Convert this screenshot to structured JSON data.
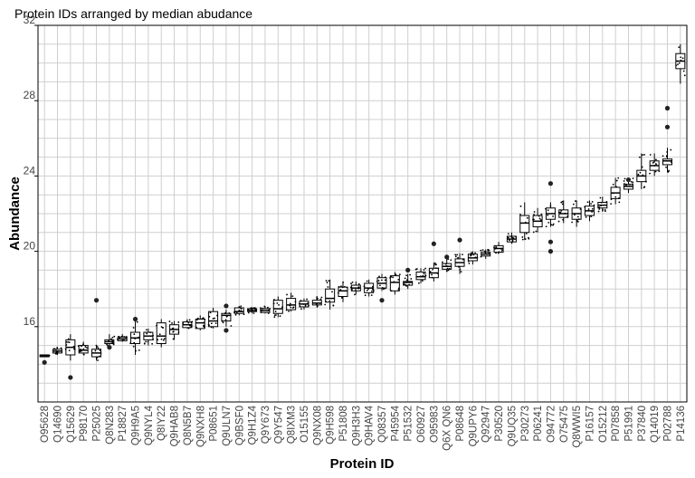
{
  "chart_data": {
    "type": "box",
    "title": "Protein IDs arranged by median abudance",
    "xlabel": "Protein ID",
    "ylabel": "Abundance",
    "ylim": [
      12.0,
      32.0
    ],
    "yticks": [
      16,
      20,
      24,
      28,
      32
    ],
    "grid": true,
    "legend": "none",
    "categories": [
      "O95628",
      "Q14690",
      "Q15629",
      "P98170",
      "P25025",
      "Q8N283",
      "P18827",
      "Q9H9A5",
      "Q9NYL4",
      "Q8IY22",
      "Q9HAB8",
      "Q8N5B7",
      "Q9NXH8",
      "P08651",
      "Q9ULN7",
      "Q9BSF0",
      "Q9H1Z4",
      "Q9Y673",
      "Q9Y547",
      "Q8IXM3",
      "O15155",
      "Q9NX08",
      "Q9H598",
      "P51808",
      "Q9H3H3",
      "Q9HAV4",
      "Q08357",
      "P45954",
      "P51532",
      "O60927",
      "O95983",
      "Q6X QN6",
      "P08648",
      "Q9UPY6",
      "Q92947",
      "P30520",
      "Q9UQ35",
      "P30273",
      "P06241",
      "O94772",
      "O75475",
      "Q8WWI5",
      "P16157",
      "O15212",
      "P07858",
      "P51991",
      "P37840",
      "Q14019",
      "P02788",
      "P14136"
    ],
    "labeled_categories": [
      "O95628",
      "Q14690",
      "Q15629",
      "P98170",
      "P25025",
      "Q8N283",
      "P18827",
      "Q9H9A5",
      "Q9NYL4",
      "Q8IY22",
      "Q9HAB8",
      "Q8N5B7",
      "Q9NXH8",
      "P08651",
      "Q9ULN7",
      "Q9BSF0",
      "Q9H1Z4",
      "Q9Y673",
      "Q9Y547",
      "Q8IXM3",
      "O15155",
      "Q9NX08",
      "Q9H598",
      "P51808",
      "Q9H3H3",
      "Q9HAV4",
      "Q08357",
      "P45954",
      "P51532",
      "O60927",
      "O95983",
      "Q6X QN6",
      "P08648",
      "Q9UPY6",
      "Q92947",
      "P30520",
      "Q9UQ35",
      "P30273",
      "P06241",
      "O94772",
      "O75475",
      "Q8WWI5",
      "P16157",
      "O15212",
      "P07858",
      "P51991",
      "P37840",
      "Q14019",
      "P02788",
      "P14136"
    ],
    "boxes": [
      {
        "q1": 14.4,
        "median": 14.45,
        "q3": 14.5,
        "whisker_low": 14.4,
        "whisker_high": 14.5,
        "outliers": [
          14.1
        ]
      },
      {
        "q1": 14.6,
        "median": 14.7,
        "q3": 14.8,
        "whisker_low": 14.5,
        "whisker_high": 14.9,
        "outliers": []
      },
      {
        "q1": 14.5,
        "median": 14.9,
        "q3": 15.3,
        "whisker_low": 14.2,
        "whisker_high": 15.6,
        "outliers": [
          13.3
        ]
      },
      {
        "q1": 14.6,
        "median": 14.75,
        "q3": 15.0,
        "whisker_low": 14.5,
        "whisker_high": 15.2,
        "outliers": []
      },
      {
        "q1": 14.4,
        "median": 14.6,
        "q3": 14.8,
        "whisker_low": 14.2,
        "whisker_high": 15.0,
        "outliers": [
          17.4
        ]
      },
      {
        "q1": 15.1,
        "median": 15.2,
        "q3": 15.3,
        "whisker_low": 15.0,
        "whisker_high": 15.6,
        "outliers": [
          14.9
        ]
      },
      {
        "q1": 15.25,
        "median": 15.35,
        "q3": 15.45,
        "whisker_low": 15.2,
        "whisker_high": 15.6,
        "outliers": []
      },
      {
        "q1": 15.1,
        "median": 15.4,
        "q3": 15.7,
        "whisker_low": 14.5,
        "whisker_high": 16.3,
        "outliers": [
          16.4
        ]
      },
      {
        "q1": 15.3,
        "median": 15.5,
        "q3": 15.7,
        "whisker_low": 15.0,
        "whisker_high": 15.9,
        "outliers": []
      },
      {
        "q1": 15.1,
        "median": 15.5,
        "q3": 16.2,
        "whisker_low": 14.9,
        "whisker_high": 16.4,
        "outliers": []
      },
      {
        "q1": 15.6,
        "median": 15.85,
        "q3": 16.1,
        "whisker_low": 15.3,
        "whisker_high": 16.3,
        "outliers": []
      },
      {
        "q1": 15.95,
        "median": 16.1,
        "q3": 16.25,
        "whisker_low": 15.9,
        "whisker_high": 16.4,
        "outliers": []
      },
      {
        "q1": 15.9,
        "median": 16.2,
        "q3": 16.4,
        "whisker_low": 15.8,
        "whisker_high": 16.6,
        "outliers": []
      },
      {
        "q1": 16.0,
        "median": 16.3,
        "q3": 16.8,
        "whisker_low": 15.9,
        "whisker_high": 17.0,
        "outliers": []
      },
      {
        "q1": 16.3,
        "median": 16.6,
        "q3": 16.7,
        "whisker_low": 16.0,
        "whisker_high": 16.9,
        "outliers": [
          15.8,
          17.1
        ]
      },
      {
        "q1": 16.7,
        "median": 16.8,
        "q3": 17.0,
        "whisker_low": 16.6,
        "whisker_high": 17.1,
        "outliers": []
      },
      {
        "q1": 16.8,
        "median": 16.85,
        "q3": 16.95,
        "whisker_low": 16.7,
        "whisker_high": 17.0,
        "outliers": []
      },
      {
        "q1": 16.75,
        "median": 16.85,
        "q3": 16.95,
        "whisker_low": 16.7,
        "whisker_high": 17.1,
        "outliers": []
      },
      {
        "q1": 16.7,
        "median": 16.95,
        "q3": 17.4,
        "whisker_low": 16.5,
        "whisker_high": 17.6,
        "outliers": []
      },
      {
        "q1": 16.9,
        "median": 17.15,
        "q3": 17.5,
        "whisker_low": 16.8,
        "whisker_high": 17.8,
        "outliers": []
      },
      {
        "q1": 17.05,
        "median": 17.2,
        "q3": 17.35,
        "whisker_low": 16.9,
        "whisker_high": 17.5,
        "outliers": []
      },
      {
        "q1": 17.15,
        "median": 17.25,
        "q3": 17.4,
        "whisker_low": 17.0,
        "whisker_high": 17.6,
        "outliers": []
      },
      {
        "q1": 17.3,
        "median": 17.5,
        "q3": 18.0,
        "whisker_low": 16.9,
        "whisker_high": 18.5,
        "outliers": []
      },
      {
        "q1": 17.6,
        "median": 17.9,
        "q3": 18.1,
        "whisker_low": 17.3,
        "whisker_high": 18.4,
        "outliers": []
      },
      {
        "q1": 17.9,
        "median": 18.05,
        "q3": 18.2,
        "whisker_low": 17.7,
        "whisker_high": 18.4,
        "outliers": []
      },
      {
        "q1": 17.8,
        "median": 18.05,
        "q3": 18.3,
        "whisker_low": 17.6,
        "whisker_high": 18.5,
        "outliers": []
      },
      {
        "q1": 18.05,
        "median": 18.3,
        "q3": 18.6,
        "whisker_low": 17.9,
        "whisker_high": 18.8,
        "outliers": [
          17.4
        ]
      },
      {
        "q1": 17.9,
        "median": 18.35,
        "q3": 18.7,
        "whisker_low": 17.7,
        "whisker_high": 18.9,
        "outliers": []
      },
      {
        "q1": 18.2,
        "median": 18.35,
        "q3": 18.4,
        "whisker_low": 18.0,
        "whisker_high": 18.8,
        "outliers": [
          19.0
        ]
      },
      {
        "q1": 18.5,
        "median": 18.65,
        "q3": 18.9,
        "whisker_low": 18.3,
        "whisker_high": 19.1,
        "outliers": []
      },
      {
        "q1": 18.6,
        "median": 18.85,
        "q3": 19.1,
        "whisker_low": 18.4,
        "whisker_high": 19.4,
        "outliers": [
          20.4
        ]
      },
      {
        "q1": 19.05,
        "median": 19.2,
        "q3": 19.35,
        "whisker_low": 18.9,
        "whisker_high": 19.6,
        "outliers": [
          19.7
        ]
      },
      {
        "q1": 19.2,
        "median": 19.4,
        "q3": 19.6,
        "whisker_low": 18.8,
        "whisker_high": 19.9,
        "outliers": [
          20.6
        ]
      },
      {
        "q1": 19.5,
        "median": 19.65,
        "q3": 19.85,
        "whisker_low": 19.3,
        "whisker_high": 20.0,
        "outliers": []
      },
      {
        "q1": 19.75,
        "median": 19.85,
        "q3": 19.95,
        "whisker_low": 19.6,
        "whisker_high": 20.1,
        "outliers": []
      },
      {
        "q1": 19.95,
        "median": 20.15,
        "q3": 20.3,
        "whisker_low": 19.9,
        "whisker_high": 20.5,
        "outliers": []
      },
      {
        "q1": 20.5,
        "median": 20.65,
        "q3": 20.8,
        "whisker_low": 20.4,
        "whisker_high": 21.0,
        "outliers": []
      },
      {
        "q1": 21.0,
        "median": 21.5,
        "q3": 21.9,
        "whisker_low": 20.6,
        "whisker_high": 22.6,
        "outliers": []
      },
      {
        "q1": 21.3,
        "median": 21.6,
        "q3": 21.9,
        "whisker_low": 21.0,
        "whisker_high": 22.3,
        "outliers": []
      },
      {
        "q1": 21.7,
        "median": 22.0,
        "q3": 22.3,
        "whisker_low": 21.3,
        "whisker_high": 22.6,
        "outliers": [
          23.6,
          20.5,
          20.0
        ]
      },
      {
        "q1": 21.8,
        "median": 22.0,
        "q3": 22.2,
        "whisker_low": 21.5,
        "whisker_high": 22.7,
        "outliers": []
      },
      {
        "q1": 21.7,
        "median": 22.0,
        "q3": 22.3,
        "whisker_low": 21.3,
        "whisker_high": 22.7,
        "outliers": []
      },
      {
        "q1": 21.9,
        "median": 22.15,
        "q3": 22.4,
        "whisker_low": 21.6,
        "whisker_high": 22.7,
        "outliers": []
      },
      {
        "q1": 22.3,
        "median": 22.45,
        "q3": 22.6,
        "whisker_low": 22.1,
        "whisker_high": 22.9,
        "outliers": []
      },
      {
        "q1": 22.8,
        "median": 23.1,
        "q3": 23.4,
        "whisker_low": 22.5,
        "whisker_high": 23.9,
        "outliers": []
      },
      {
        "q1": 23.3,
        "median": 23.45,
        "q3": 23.55,
        "whisker_low": 23.1,
        "whisker_high": 23.9,
        "outliers": [
          23.8
        ]
      },
      {
        "q1": 23.7,
        "median": 24.0,
        "q3": 24.3,
        "whisker_low": 23.3,
        "whisker_high": 25.2,
        "outliers": []
      },
      {
        "q1": 24.3,
        "median": 24.55,
        "q3": 24.8,
        "whisker_low": 24.0,
        "whisker_high": 25.2,
        "outliers": []
      },
      {
        "q1": 24.6,
        "median": 24.8,
        "q3": 24.9,
        "whisker_low": 24.2,
        "whisker_high": 25.5,
        "outliers": [
          26.6,
          27.6
        ]
      },
      {
        "q1": 29.7,
        "median": 30.1,
        "q3": 30.5,
        "whisker_low": 28.9,
        "whisker_high": 31.0,
        "outliers": []
      }
    ]
  }
}
